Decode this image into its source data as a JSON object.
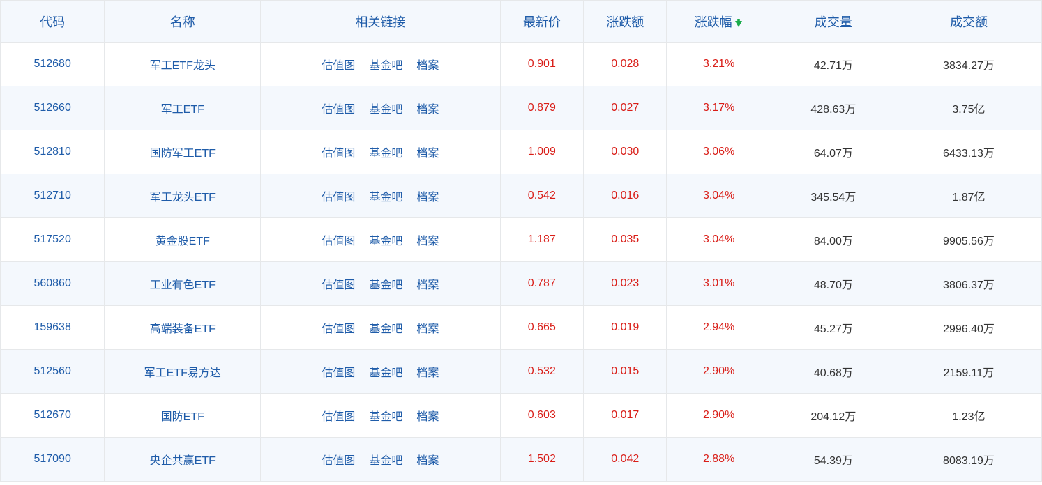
{
  "headers": {
    "code": "代码",
    "name": "名称",
    "links": "相关链接",
    "price": "最新价",
    "change": "涨跌额",
    "change_pct": "涨跌幅",
    "volume": "成交量",
    "turnover": "成交额"
  },
  "link_labels": {
    "valuation": "估值图",
    "forum": "基金吧",
    "profile": "档案"
  },
  "sort_indicator": {
    "column": "change_pct",
    "direction": "down",
    "color": "#1aab4a"
  },
  "colors": {
    "header_bg": "#f4f8fd",
    "border": "#e6e8ea",
    "blue": "#1f5ca9",
    "red": "#d91e18",
    "black": "#333333",
    "row_alt_bg": "#f4f8fd"
  },
  "rows": [
    {
      "code": "512680",
      "name": "军工ETF龙头",
      "price": "0.901",
      "change": "0.028",
      "change_pct": "3.21%",
      "volume": "42.71万",
      "turnover": "3834.27万"
    },
    {
      "code": "512660",
      "name": "军工ETF",
      "price": "0.879",
      "change": "0.027",
      "change_pct": "3.17%",
      "volume": "428.63万",
      "turnover": "3.75亿"
    },
    {
      "code": "512810",
      "name": "国防军工ETF",
      "price": "1.009",
      "change": "0.030",
      "change_pct": "3.06%",
      "volume": "64.07万",
      "turnover": "6433.13万"
    },
    {
      "code": "512710",
      "name": "军工龙头ETF",
      "price": "0.542",
      "change": "0.016",
      "change_pct": "3.04%",
      "volume": "345.54万",
      "turnover": "1.87亿"
    },
    {
      "code": "517520",
      "name": "黄金股ETF",
      "price": "1.187",
      "change": "0.035",
      "change_pct": "3.04%",
      "volume": "84.00万",
      "turnover": "9905.56万"
    },
    {
      "code": "560860",
      "name": "工业有色ETF",
      "price": "0.787",
      "change": "0.023",
      "change_pct": "3.01%",
      "volume": "48.70万",
      "turnover": "3806.37万"
    },
    {
      "code": "159638",
      "name": "高端装备ETF",
      "price": "0.665",
      "change": "0.019",
      "change_pct": "2.94%",
      "volume": "45.27万",
      "turnover": "2996.40万"
    },
    {
      "code": "512560",
      "name": "军工ETF易方达",
      "price": "0.532",
      "change": "0.015",
      "change_pct": "2.90%",
      "volume": "40.68万",
      "turnover": "2159.11万"
    },
    {
      "code": "512670",
      "name": "国防ETF",
      "price": "0.603",
      "change": "0.017",
      "change_pct": "2.90%",
      "volume": "204.12万",
      "turnover": "1.23亿"
    },
    {
      "code": "517090",
      "name": "央企共赢ETF",
      "price": "1.502",
      "change": "0.042",
      "change_pct": "2.88%",
      "volume": "54.39万",
      "turnover": "8083.19万"
    }
  ]
}
